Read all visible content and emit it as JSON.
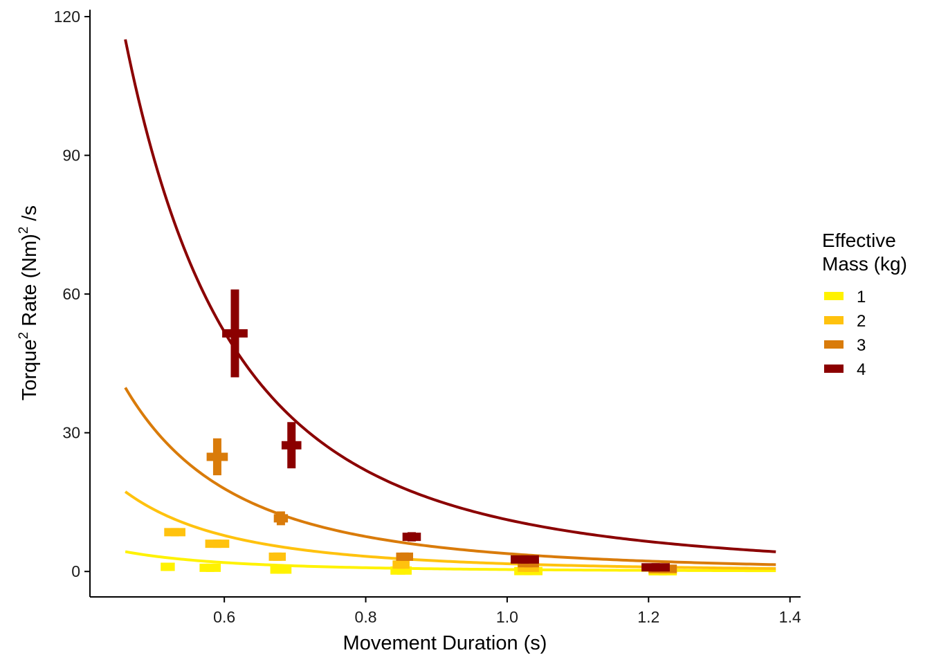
{
  "chart_data": {
    "type": "scatter",
    "xlabel": "Movement Duration (s)",
    "ylabel": {
      "base": "Torque",
      "sup1": "2",
      "mid": " Rate (Nm)",
      "sup2": "2",
      "end": " /s"
    },
    "xlim": [
      0.41,
      1.415
    ],
    "ylim": [
      -5.5,
      121.5
    ],
    "x_ticks": [
      0.6,
      0.8,
      1.0,
      1.2,
      1.4
    ],
    "x_tick_labels": [
      "0.6",
      "0.8",
      "1.0",
      "1.2",
      "1.4"
    ],
    "y_ticks": [
      0,
      30,
      60,
      90,
      120
    ],
    "y_tick_labels": [
      "0",
      "30",
      "60",
      "90",
      "120"
    ],
    "grid": false,
    "legend": {
      "title_lines": [
        "Effective",
        "Mass (kg)"
      ],
      "placement": "right"
    },
    "series": [
      {
        "name": "1",
        "color": "#FFF200",
        "curve": {
          "x_range": [
            0.46,
            1.38
          ],
          "a": 0.417,
          "b": 3.0
        },
        "points": [
          {
            "x": 0.52,
            "y": 1.0,
            "xerr": 0.01,
            "yerr": 0.4
          },
          {
            "x": 0.58,
            "y": 0.8,
            "xerr": 0.015,
            "yerr": 0.5
          },
          {
            "x": 0.68,
            "y": 0.4,
            "xerr": 0.015,
            "yerr": 0.3
          },
          {
            "x": 0.85,
            "y": 0.2,
            "xerr": 0.015,
            "yerr": 0.2
          },
          {
            "x": 1.03,
            "y": 0.1,
            "xerr": 0.02,
            "yerr": 0.15
          },
          {
            "x": 1.22,
            "y": 0.05,
            "xerr": 0.02,
            "yerr": 0.1
          }
        ]
      },
      {
        "name": "2",
        "color": "#FFC20E",
        "curve": {
          "x_range": [
            0.46,
            1.38
          ],
          "a": 1.68,
          "b": 3.0
        },
        "points": [
          {
            "x": 0.53,
            "y": 8.5,
            "xerr": 0.015,
            "yerr": 0.4
          },
          {
            "x": 0.59,
            "y": 6.0,
            "xerr": 0.017,
            "yerr": 0.4
          },
          {
            "x": 0.675,
            "y": 3.2,
            "xerr": 0.012,
            "yerr": 0.5
          },
          {
            "x": 0.85,
            "y": 1.5,
            "xerr": 0.012,
            "yerr": 0.3
          },
          {
            "x": 1.03,
            "y": 0.8,
            "xerr": 0.015,
            "yerr": 0.2
          },
          {
            "x": 1.22,
            "y": 0.4,
            "xerr": 0.02,
            "yerr": 0.2
          }
        ]
      },
      {
        "name": "3",
        "color": "#D97B0A",
        "curve": {
          "x_range": [
            0.46,
            1.38
          ],
          "a": 3.87,
          "b": 3.0
        },
        "points": [
          {
            "x": 0.59,
            "y": 24.8,
            "xerr": 0.015,
            "yerr": 4.0
          },
          {
            "x": 0.68,
            "y": 11.5,
            "xerr": 0.01,
            "yerr": 1.5
          },
          {
            "x": 0.855,
            "y": 3.2,
            "xerr": 0.012,
            "yerr": 0.6
          },
          {
            "x": 1.03,
            "y": 1.8,
            "xerr": 0.015,
            "yerr": 0.4
          },
          {
            "x": 1.22,
            "y": 0.6,
            "xerr": 0.02,
            "yerr": 0.3
          }
        ]
      },
      {
        "name": "4",
        "color": "#8B0000",
        "curve": {
          "x_range": [
            0.46,
            1.38
          ],
          "a": 11.2,
          "b": 3.0
        },
        "points": [
          {
            "x": 0.615,
            "y": 51.5,
            "xerr": 0.018,
            "yerr": 9.5
          },
          {
            "x": 0.695,
            "y": 27.3,
            "xerr": 0.014,
            "yerr": 5.0
          },
          {
            "x": 0.865,
            "y": 7.5,
            "xerr": 0.013,
            "yerr": 1.0
          },
          {
            "x": 1.025,
            "y": 2.6,
            "xerr": 0.02,
            "yerr": 0.5
          },
          {
            "x": 1.21,
            "y": 0.9,
            "xerr": 0.02,
            "yerr": 0.3
          }
        ]
      }
    ]
  }
}
